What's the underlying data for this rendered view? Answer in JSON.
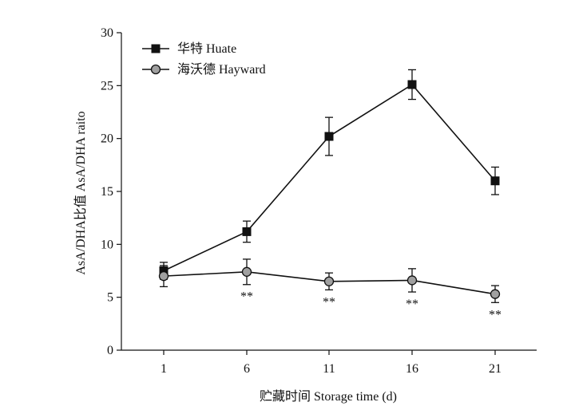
{
  "chart_data": {
    "type": "line",
    "xlabel": "贮藏时间 Storage time (d)",
    "ylabel": "AsA/DHA比值 AsA/DHA  raito",
    "categories": [
      "1",
      "6",
      "11",
      "16",
      "21"
    ],
    "ylim": [
      0,
      30
    ],
    "yticks": [
      "0",
      "5",
      "10",
      "15",
      "20",
      "25",
      "30"
    ],
    "grid": false,
    "legend_position": "top-left",
    "series": [
      {
        "name": "华特 Huate",
        "marker": "square",
        "color": "#111111",
        "values": [
          7.5,
          11.2,
          20.2,
          25.1,
          16.0
        ],
        "errors": [
          0.8,
          1.0,
          1.8,
          1.4,
          1.3
        ]
      },
      {
        "name": "海沃德 Hayward",
        "marker": "circle",
        "color": "#a0a0a0",
        "values": [
          7.0,
          7.4,
          6.5,
          6.6,
          5.3
        ],
        "errors": [
          1.0,
          1.2,
          0.8,
          1.1,
          0.8
        ]
      }
    ],
    "annotations": [
      {
        "category": "6",
        "text": "**"
      },
      {
        "category": "11",
        "text": "**"
      },
      {
        "category": "16",
        "text": "**"
      },
      {
        "category": "21",
        "text": "**"
      }
    ]
  }
}
